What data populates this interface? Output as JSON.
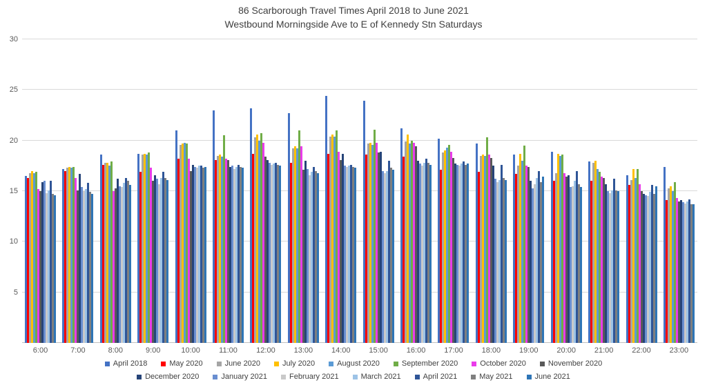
{
  "chart": {
    "title_line1": "86 Scarborough Travel Times April 2018 to June 2021",
    "title_line2": "Westbound Morningside Ave to E of Kennedy Stn Saturdays"
  },
  "chart_data": {
    "type": "bar",
    "title": "86 Scarborough Travel Times April 2018 to June 2021",
    "subtitle": "Westbound Morningside Ave to E of Kennedy Stn Saturdays",
    "xlabel": "",
    "ylabel": "",
    "ylim": [
      0,
      30
    ],
    "y_ticks": [
      5,
      10,
      15,
      20,
      25,
      30
    ],
    "grid": "horizontal",
    "legend_position": "bottom",
    "legend_row_split": 8,
    "categories": [
      "6:00",
      "7:00",
      "8:00",
      "9:00",
      "10:00",
      "11:00",
      "12:00",
      "13:00",
      "14:00",
      "15:00",
      "16:00",
      "17:00",
      "18:00",
      "19:00",
      "20:00",
      "21:00",
      "22:00",
      "23:00"
    ],
    "series": [
      {
        "name": "April 2018",
        "color": "#4472C4",
        "values": [
          16.5,
          17.2,
          18.6,
          18.7,
          21.0,
          23.0,
          23.2,
          22.7,
          24.4,
          23.9,
          21.2,
          20.2,
          19.7,
          18.6,
          18.9,
          17.9,
          16.6,
          17.4
        ]
      },
      {
        "name": "May 2020",
        "color": "#FF0000",
        "values": [
          16.3,
          17.0,
          17.6,
          16.9,
          18.2,
          18.1,
          18.7,
          17.8,
          18.7,
          18.6,
          18.4,
          17.1,
          16.9,
          16.7,
          16.0,
          16.0,
          15.6,
          14.1
        ]
      },
      {
        "name": "June 2020",
        "color": "#A5A5A5",
        "values": [
          16.8,
          17.3,
          17.8,
          18.6,
          19.6,
          18.5,
          20.3,
          19.2,
          20.4,
          19.7,
          19.9,
          18.8,
          18.5,
          17.5,
          16.8,
          17.8,
          16.1,
          15.3
        ]
      },
      {
        "name": "July 2020",
        "color": "#FFC000",
        "values": [
          17.0,
          17.4,
          17.8,
          18.7,
          19.7,
          18.6,
          20.6,
          19.4,
          20.6,
          19.8,
          20.6,
          19.0,
          18.6,
          18.7,
          18.7,
          18.0,
          17.2,
          15.5
        ]
      },
      {
        "name": "August 2020",
        "color": "#5B9BD5",
        "values": [
          16.8,
          17.3,
          17.5,
          18.6,
          19.8,
          18.4,
          20.0,
          19.2,
          20.4,
          19.6,
          19.7,
          19.3,
          18.5,
          18.0,
          18.5,
          17.2,
          16.3,
          15.0
        ]
      },
      {
        "name": "September 2020",
        "color": "#70AD47",
        "values": [
          16.9,
          17.4,
          17.9,
          18.8,
          19.7,
          20.5,
          20.7,
          21.0,
          21.0,
          21.1,
          20.0,
          19.6,
          20.3,
          19.5,
          18.6,
          16.9,
          17.2,
          15.9
        ]
      },
      {
        "name": "October 2020",
        "color": "#EA3BEA",
        "values": [
          15.2,
          16.3,
          15.0,
          17.3,
          18.2,
          18.2,
          19.8,
          19.4,
          18.9,
          19.8,
          19.8,
          18.9,
          18.6,
          17.5,
          16.8,
          16.4,
          15.7,
          14.3
        ]
      },
      {
        "name": "November 2020",
        "color": "#595959",
        "values": [
          15.0,
          15.1,
          15.3,
          16.0,
          17.0,
          18.1,
          18.4,
          17.1,
          18.1,
          18.8,
          19.4,
          18.3,
          18.3,
          17.4,
          16.4,
          16.3,
          15.0,
          14.0
        ]
      },
      {
        "name": "December 2020",
        "color": "#264478",
        "values": [
          15.9,
          16.7,
          16.2,
          16.6,
          17.6,
          17.4,
          18.1,
          18.0,
          18.7,
          18.9,
          18.0,
          17.7,
          17.5,
          16.0,
          16.6,
          15.7,
          14.7,
          14.1
        ]
      },
      {
        "name": "January 2021",
        "color": "#698ED0",
        "values": [
          16.0,
          15.4,
          15.5,
          16.2,
          17.4,
          17.5,
          17.8,
          17.2,
          17.5,
          17.0,
          17.7,
          17.6,
          16.2,
          15.3,
          15.4,
          15.0,
          14.6,
          13.9
        ]
      },
      {
        "name": "February 2021",
        "color": "#C9C9C9",
        "values": [
          14.8,
          15.0,
          15.4,
          15.7,
          17.3,
          17.2,
          17.6,
          16.6,
          17.4,
          16.8,
          17.5,
          17.5,
          15.9,
          15.7,
          15.5,
          14.8,
          14.5,
          13.8
        ]
      },
      {
        "name": "March 2021",
        "color": "#9DC3E6",
        "values": [
          15.1,
          15.2,
          15.8,
          16.3,
          17.5,
          17.4,
          17.7,
          16.9,
          17.5,
          17.0,
          17.8,
          17.7,
          16.1,
          16.3,
          16.0,
          15.1,
          14.9,
          14.0
        ]
      },
      {
        "name": "April 2021",
        "color": "#2F5597",
        "values": [
          16.0,
          15.8,
          16.3,
          16.9,
          17.5,
          17.6,
          17.8,
          17.4,
          17.6,
          18.0,
          18.2,
          17.9,
          17.6,
          17.0,
          17.0,
          16.2,
          15.6,
          14.2
        ]
      },
      {
        "name": "May 2021",
        "color": "#7F7F7F",
        "values": [
          14.7,
          14.9,
          16.0,
          16.3,
          17.3,
          17.4,
          17.6,
          17.0,
          17.4,
          17.3,
          17.8,
          17.6,
          16.3,
          15.9,
          15.7,
          15.1,
          14.7,
          13.7
        ]
      },
      {
        "name": "June 2021",
        "color": "#2E75B6",
        "values": [
          14.6,
          14.7,
          15.6,
          16.1,
          17.4,
          17.3,
          17.5,
          16.8,
          17.3,
          17.1,
          17.6,
          17.7,
          16.1,
          16.4,
          15.4,
          15.0,
          15.5,
          13.7
        ]
      }
    ]
  }
}
